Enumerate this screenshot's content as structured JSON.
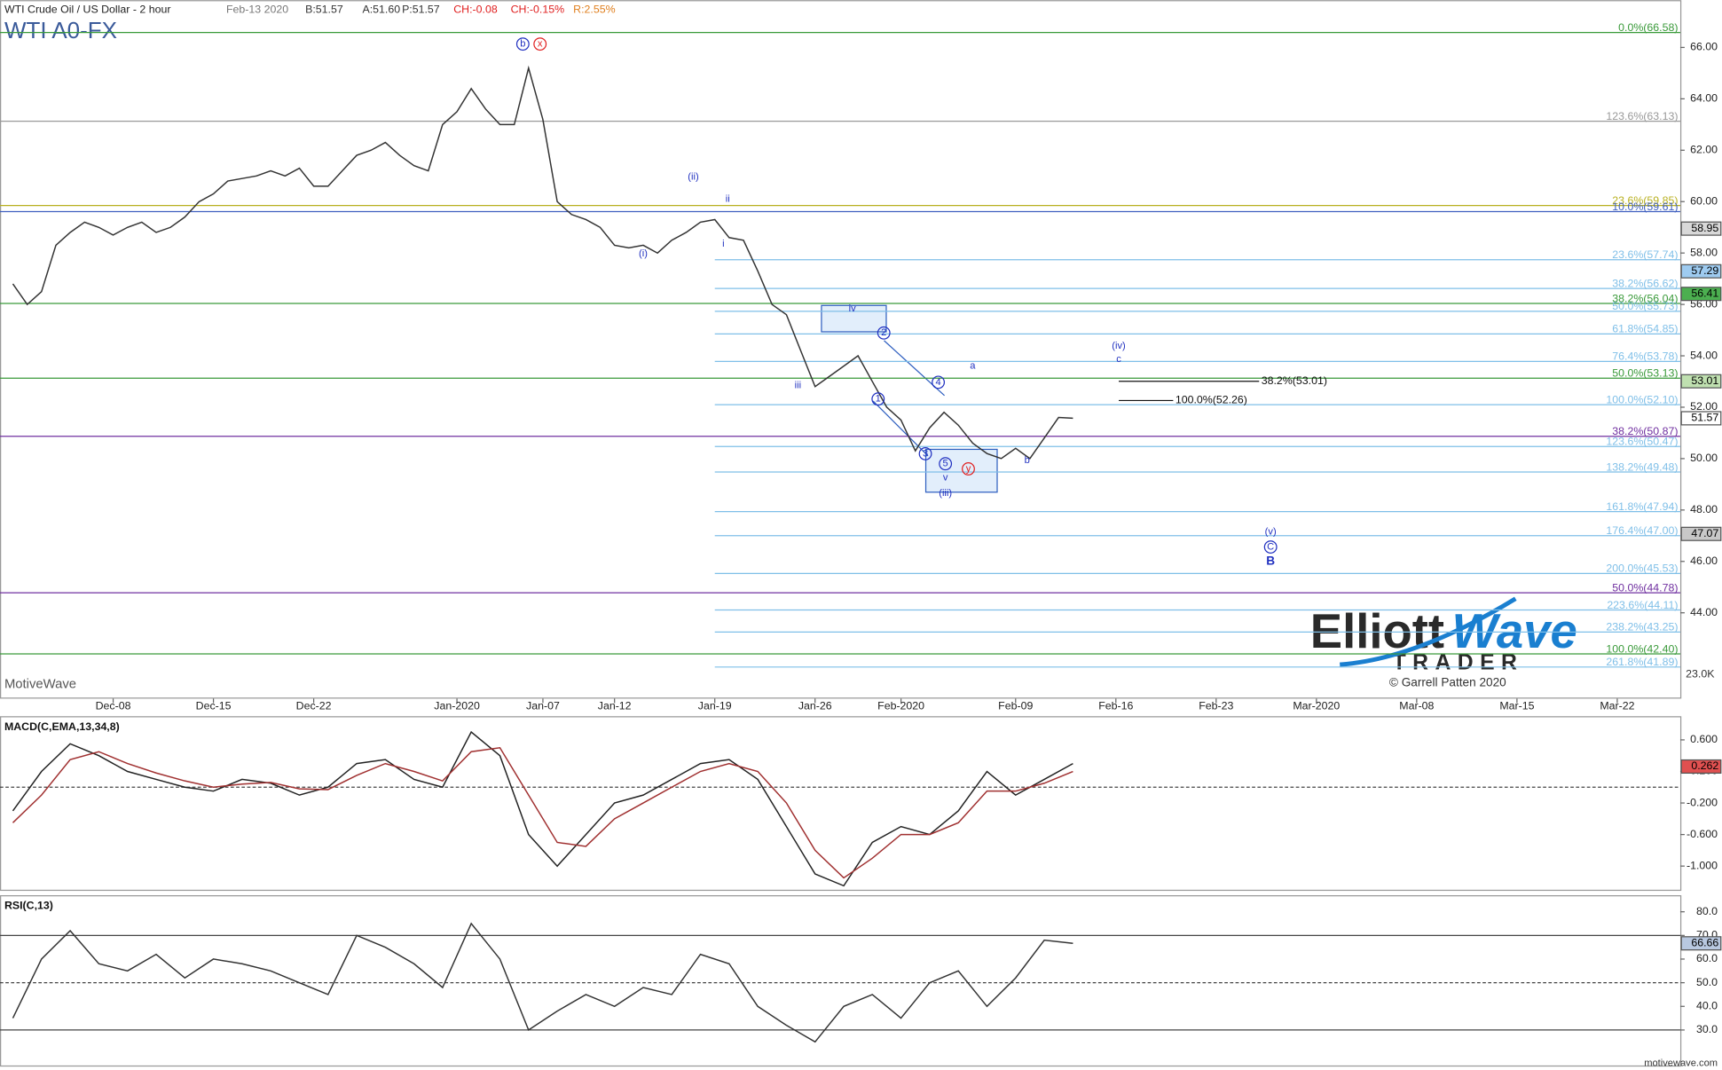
{
  "header": {
    "instrument": "WTI Crude Oil / US Dollar - 2 hour",
    "date": "Feb-13 2020",
    "bid": "B:51.57",
    "ask": "A:51.60",
    "price": "P:51.57",
    "change": "CH:-0.08",
    "change_pct": "CH:-0.15%",
    "range": "R:2.55%"
  },
  "logo": {
    "word1": "Elliott",
    "word2": "Wave",
    "word3": "TRADER",
    "copyright": "© Garrell Patten 2020"
  },
  "footer": "motivewave.com",
  "chart_data": [
    {
      "type": "line",
      "title": "WTI A0-FX",
      "watermark": "MotiveWave",
      "volume_label": "23.0K",
      "x": [
        0,
        1,
        2,
        3,
        4,
        5,
        6,
        7,
        8,
        9,
        10,
        11,
        12,
        13,
        14,
        15,
        16,
        17,
        18,
        19,
        20,
        21,
        22,
        23,
        24,
        25,
        26,
        27,
        28,
        29,
        30,
        31,
        32,
        33,
        34,
        35,
        36,
        37,
        38,
        39,
        40,
        41,
        42,
        43,
        44,
        45,
        46,
        47,
        48,
        49,
        50,
        51,
        52,
        53,
        54,
        55,
        56,
        57,
        58,
        59,
        60,
        61,
        62,
        63,
        64,
        65,
        66,
        67,
        68,
        69,
        70,
        71,
        72,
        73,
        74
      ],
      "series": [
        {
          "color": "#333333",
          "values": [
            56.8,
            56.0,
            56.5,
            58.3,
            58.8,
            59.2,
            59.0,
            58.7,
            59.0,
            59.2,
            58.8,
            59.0,
            59.4,
            60.0,
            60.3,
            60.8,
            60.9,
            61.0,
            61.2,
            61.0,
            61.3,
            60.6,
            60.6,
            61.2,
            61.8,
            62.0,
            62.3,
            61.8,
            61.4,
            61.2,
            63.0,
            63.5,
            64.4,
            63.6,
            63.0,
            63.0,
            65.2,
            63.2,
            60.0,
            59.5,
            59.3,
            59.0,
            58.3,
            58.2,
            58.3,
            58.0,
            58.5,
            58.8,
            59.2,
            59.3,
            58.6,
            58.5,
            57.3,
            56.0,
            55.6,
            54.2,
            52.8,
            53.2,
            53.6,
            54.0,
            53.0,
            52.0,
            51.5,
            50.3,
            51.2,
            51.8,
            51.3,
            50.6,
            50.2,
            50.0,
            50.4,
            50.0,
            50.8,
            51.6,
            51.57
          ]
        }
      ],
      "xlim": [
        -0.9,
        116.4
      ],
      "xticks": [
        {
          "value": 7,
          "label": "Dec-08"
        },
        {
          "value": 14,
          "label": "Dec-15"
        },
        {
          "value": 21,
          "label": "Dec-22"
        },
        {
          "value": 31,
          "label": "Jan-2020"
        },
        {
          "value": 37,
          "label": "Jan-07"
        },
        {
          "value": 42,
          "label": "Jan-12"
        },
        {
          "value": 49,
          "label": "Jan-19"
        },
        {
          "value": 56,
          "label": "Jan-26"
        },
        {
          "value": 62,
          "label": "Feb-2020"
        },
        {
          "value": 70,
          "label": "Feb-09"
        },
        {
          "value": 77,
          "label": "Feb-16"
        },
        {
          "value": 84,
          "label": "Feb-23"
        },
        {
          "value": 91,
          "label": "Mar-2020"
        },
        {
          "value": 98,
          "label": "Mar-08"
        },
        {
          "value": 105,
          "label": "Mar-15"
        },
        {
          "value": 112,
          "label": "Mar-22"
        }
      ],
      "ylim": [
        40.66,
        67.84
      ],
      "yticks": [
        {
          "value": 44,
          "label": "44.00"
        },
        {
          "value": 46,
          "label": "46.00"
        },
        {
          "value": 48,
          "label": "48.00"
        },
        {
          "value": 50,
          "label": "50.00"
        },
        {
          "value": 52,
          "label": "52.00"
        },
        {
          "value": 54,
          "label": "54.00"
        },
        {
          "value": 56,
          "label": "56.00"
        },
        {
          "value": 58,
          "label": "58.00"
        },
        {
          "value": 60,
          "label": "60.00"
        },
        {
          "value": 62,
          "label": "62.00"
        },
        {
          "value": 64,
          "label": "64.00"
        },
        {
          "value": 66,
          "label": "66.00"
        }
      ],
      "levels": [
        {
          "value": 66.58,
          "label": "0.0%(66.58)",
          "color": "#3a9a3a"
        },
        {
          "value": 63.13,
          "label": "123.6%(63.13)",
          "color": "#999999"
        },
        {
          "value": 59.85,
          "label": "23.6%(59.85)",
          "color": "#b8b020"
        },
        {
          "value": 59.61,
          "label": "10.0%(59.61)",
          "color": "#4060c0"
        },
        {
          "value": 57.74,
          "label": "23.6%(57.74)",
          "color": "#7fbfe8",
          "x0": 49
        },
        {
          "value": 56.62,
          "label": "38.2%(56.62)",
          "color": "#7fbfe8",
          "x0": 49
        },
        {
          "value": 56.04,
          "label": "38.2%(56.04)",
          "color": "#3a9a3a"
        },
        {
          "value": 55.73,
          "label": "50.0%(55.73)",
          "color": "#7fbfe8",
          "x0": 49
        },
        {
          "value": 54.85,
          "label": "61.8%(54.85)",
          "color": "#7fbfe8",
          "x0": 49
        },
        {
          "value": 53.78,
          "label": "76.4%(53.78)",
          "color": "#7fbfe8",
          "x0": 49
        },
        {
          "value": 53.13,
          "label": "50.0%(53.13)",
          "color": "#3a9a3a"
        },
        {
          "value": 52.1,
          "label": "100.0%(52.10)",
          "color": "#7fbfe8",
          "x0": 49
        },
        {
          "value": 50.87,
          "label": "38.2%(50.87)",
          "color": "#7030a0"
        },
        {
          "value": 50.47,
          "label": "123.6%(50.47)",
          "color": "#7fbfe8",
          "x0": 49
        },
        {
          "value": 49.48,
          "label": "138.2%(49.48)",
          "color": "#7fbfe8",
          "x0": 49
        },
        {
          "value": 47.94,
          "label": "161.8%(47.94)",
          "color": "#7fbfe8",
          "x0": 49
        },
        {
          "value": 47.0,
          "label": "176.4%(47.00)",
          "color": "#7fbfe8",
          "x0": 49
        },
        {
          "value": 45.53,
          "label": "200.0%(45.53)",
          "color": "#7fbfe8",
          "x0": 49
        },
        {
          "value": 44.78,
          "label": "50.0%(44.78)",
          "color": "#7030a0"
        },
        {
          "value": 44.11,
          "label": "223.6%(44.11)",
          "color": "#7fbfe8",
          "x0": 49
        },
        {
          "value": 43.25,
          "label": "238.2%(43.25)",
          "color": "#7fbfe8",
          "x0": 49
        },
        {
          "value": 42.4,
          "label": "100.0%(42.40)",
          "color": "#3a9a3a"
        },
        {
          "value": 41.89,
          "label": "261.8%(41.89)",
          "color": "#7fbfe8",
          "x0": 49
        }
      ],
      "projections": [
        {
          "value": 53.01,
          "label": "38.2%(53.01)",
          "x0": 77.2,
          "x1": 87
        },
        {
          "value": 52.26,
          "label": "100.0%(52.26)",
          "x0": 77.2,
          "x1": 81
        }
      ],
      "price_tags": [
        {
          "value": 58.95,
          "color": "#d8d8d8"
        },
        {
          "value": 57.29,
          "color": "#9ecbf0"
        },
        {
          "value": 56.41,
          "color": "#4caf50"
        },
        {
          "value": 53.01,
          "color": "#bfe0b0"
        },
        {
          "value": 51.57,
          "color": "#ffffff"
        },
        {
          "value": 47.07,
          "color": "#c8c8c8"
        }
      ],
      "annotations": [
        {
          "text": "b",
          "x": 35.6,
          "y": 66.13,
          "color": "#2030c0",
          "circle": true
        },
        {
          "text": "x",
          "x": 36.8,
          "y": 66.13,
          "color": "#e02020",
          "circle": true
        },
        {
          "text": "(ii)",
          "x": 47.5,
          "y": 60.96,
          "color": "#2030c0"
        },
        {
          "text": "(i)",
          "x": 44.0,
          "y": 57.97,
          "color": "#2030c0"
        },
        {
          "text": "i",
          "x": 49.6,
          "y": 58.35,
          "color": "#2030c0"
        },
        {
          "text": "ii",
          "x": 49.9,
          "y": 60.1,
          "color": "#2030c0"
        },
        {
          "text": "iii",
          "x": 54.8,
          "y": 52.84,
          "color": "#2030c0"
        },
        {
          "text": "iv",
          "x": 58.6,
          "y": 55.83,
          "color": "#2030c0"
        },
        {
          "text": "2",
          "x": 60.8,
          "y": 54.89,
          "color": "#2030c0",
          "circle": true
        },
        {
          "text": "1",
          "x": 60.4,
          "y": 52.32,
          "color": "#2030c0",
          "circle": true
        },
        {
          "text": "4",
          "x": 64.6,
          "y": 52.97,
          "color": "#2030c0",
          "circle": true
        },
        {
          "text": "3",
          "x": 63.7,
          "y": 50.19,
          "color": "#2030c0",
          "circle": true
        },
        {
          "text": "5",
          "x": 65.1,
          "y": 49.8,
          "color": "#2030c0",
          "circle": true
        },
        {
          "text": "v",
          "x": 65.1,
          "y": 49.25,
          "color": "#2030c0"
        },
        {
          "text": "(iii)",
          "x": 65.1,
          "y": 48.65,
          "color": "#2030c0"
        },
        {
          "text": "y",
          "x": 66.7,
          "y": 49.6,
          "color": "#e02020",
          "circle": true
        },
        {
          "text": "a",
          "x": 67.0,
          "y": 53.6,
          "color": "#2030c0"
        },
        {
          "text": "b",
          "x": 70.8,
          "y": 49.93,
          "color": "#2030c0"
        },
        {
          "text": "(iv)",
          "x": 77.2,
          "y": 54.38,
          "color": "#2030c0"
        },
        {
          "text": "c",
          "x": 77.2,
          "y": 53.86,
          "color": "#2030c0"
        },
        {
          "text": "(v)",
          "x": 87.8,
          "y": 47.15,
          "color": "#2030c0"
        },
        {
          "text": "C",
          "x": 87.8,
          "y": 46.56,
          "color": "#2030c0",
          "circle": true
        },
        {
          "text": "B",
          "x": 87.8,
          "y": 46.0,
          "color": "#2030c0",
          "bold": true
        }
      ]
    },
    {
      "type": "line",
      "title": "MACD(C,EMA,13,34,8)",
      "x": [
        0,
        2,
        4,
        6,
        8,
        10,
        12,
        14,
        16,
        18,
        20,
        22,
        24,
        26,
        28,
        30,
        32,
        34,
        36,
        38,
        40,
        42,
        44,
        46,
        48,
        50,
        52,
        54,
        56,
        58,
        60,
        62,
        64,
        66,
        68,
        70,
        72,
        74
      ],
      "series": [
        {
          "color": "#222222",
          "values": [
            -0.3,
            0.2,
            0.55,
            0.4,
            0.2,
            0.1,
            0.0,
            -0.05,
            0.1,
            0.05,
            -0.1,
            0.0,
            0.3,
            0.35,
            0.1,
            0.0,
            0.7,
            0.4,
            -0.6,
            -1.0,
            -0.6,
            -0.2,
            -0.1,
            0.1,
            0.3,
            0.35,
            0.1,
            -0.5,
            -1.1,
            -1.25,
            -0.7,
            -0.5,
            -0.6,
            -0.3,
            0.2,
            -0.1,
            0.1,
            0.3
          ]
        },
        {
          "color": "#a03030",
          "values": [
            -0.45,
            -0.1,
            0.35,
            0.45,
            0.3,
            0.18,
            0.08,
            0.0,
            0.04,
            0.06,
            -0.02,
            -0.03,
            0.15,
            0.3,
            0.2,
            0.08,
            0.45,
            0.5,
            -0.1,
            -0.7,
            -0.75,
            -0.4,
            -0.2,
            0.0,
            0.2,
            0.3,
            0.2,
            -0.2,
            -0.8,
            -1.15,
            -0.9,
            -0.6,
            -0.6,
            -0.45,
            -0.05,
            -0.05,
            0.05,
            0.2
          ]
        }
      ],
      "hlines": [
        0
      ],
      "ylim": [
        -1.3,
        0.9
      ],
      "yticks": [
        {
          "value": 0.6,
          "label": "0.600"
        },
        {
          "value": 0.2,
          "label": "0.200"
        },
        {
          "value": -0.2,
          "label": "-0.200"
        },
        {
          "value": -0.6,
          "label": "-0.600"
        },
        {
          "value": -1.0,
          "label": "-1.000"
        }
      ],
      "tag": {
        "value": 0.262,
        "color": "#e05050"
      }
    },
    {
      "type": "line",
      "title": "RSI(C,13)",
      "x": [
        0,
        2,
        4,
        6,
        8,
        10,
        12,
        14,
        16,
        18,
        20,
        22,
        24,
        26,
        28,
        30,
        32,
        34,
        36,
        38,
        40,
        42,
        44,
        46,
        48,
        50,
        52,
        54,
        56,
        58,
        60,
        62,
        64,
        66,
        68,
        70,
        72,
        74
      ],
      "series": [
        {
          "color": "#333333",
          "values": [
            35,
            60,
            72,
            58,
            55,
            62,
            52,
            60,
            58,
            55,
            50,
            45,
            70,
            65,
            58,
            48,
            75,
            60,
            30,
            38,
            45,
            40,
            48,
            45,
            62,
            58,
            40,
            32,
            25,
            40,
            45,
            35,
            50,
            55,
            40,
            52,
            68,
            66.66
          ]
        }
      ],
      "hlines": [
        70,
        50,
        30
      ],
      "ylim": [
        15,
        87
      ],
      "yticks": [
        {
          "value": 30,
          "label": "30.0"
        },
        {
          "value": 40,
          "label": "40.0"
        },
        {
          "value": 50,
          "label": "50.0"
        },
        {
          "value": 60,
          "label": "60.0"
        },
        {
          "value": 70,
          "label": "70.0"
        },
        {
          "value": 80,
          "label": "80.0"
        }
      ],
      "tag": {
        "value": 66.66,
        "color": "#b8c8e0"
      }
    }
  ]
}
